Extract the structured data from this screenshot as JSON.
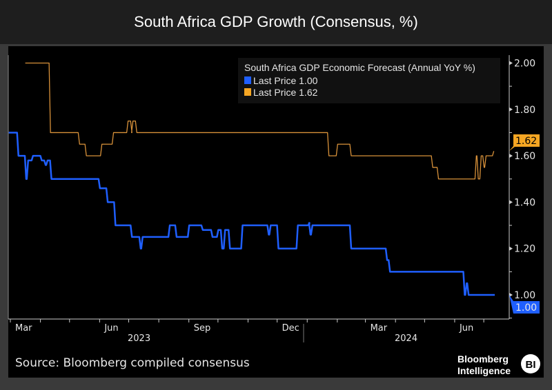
{
  "title": "South Africa GDP Growth (Consensus, %)",
  "source": "Source: Bloomberg compiled consensus",
  "brand": {
    "line1": "Bloomberg",
    "line2": "Intelligence",
    "badge": "BI"
  },
  "colors": {
    "blue": "#1f5fff",
    "orange": "#d9923a",
    "tag_orange": "#f5a623",
    "background": "#000000",
    "title_bg": "#1e1e1e"
  },
  "chart_data": {
    "type": "line",
    "title": "South Africa GDP Growth (Consensus, %)",
    "legend_title": "South Africa GDP Economic Forecast (Annual YoY %)",
    "legend_position": "top-right",
    "grid": false,
    "y_axis_side": "right",
    "ylim": [
      0.9,
      2.05
    ],
    "y_ticks": [
      "2.00",
      "1.80",
      "1.60",
      "1.40",
      "1.20",
      "1.00"
    ],
    "x_ticks": [
      "Mar",
      "Jun",
      "Sep",
      "Dec",
      "Mar",
      "Jun"
    ],
    "x_tick_dates": [
      "2023-03-01",
      "2023-06-01",
      "2023-09-01",
      "2023-12-01",
      "2024-03-01",
      "2024-06-01"
    ],
    "x_years": [
      "2023",
      "2024"
    ],
    "xlim": [
      "2023-02-27",
      "2024-07-24"
    ],
    "series": [
      {
        "name": "Last Price 1.00",
        "color": "#1f5fff",
        "last": "1.00",
        "step": true,
        "points": [
          [
            "2023-02-27",
            1.7
          ],
          [
            "2023-03-09",
            1.6
          ],
          [
            "2023-03-17",
            1.5
          ],
          [
            "2023-03-19",
            1.58
          ],
          [
            "2023-03-24",
            1.6
          ],
          [
            "2023-04-02",
            1.58
          ],
          [
            "2023-04-06",
            1.56
          ],
          [
            "2023-04-08",
            1.58
          ],
          [
            "2023-04-12",
            1.5
          ],
          [
            "2023-06-01",
            1.46
          ],
          [
            "2023-06-09",
            1.4
          ],
          [
            "2023-06-17",
            1.3
          ],
          [
            "2023-07-04",
            1.25
          ],
          [
            "2023-07-13",
            1.2
          ],
          [
            "2023-07-15",
            1.25
          ],
          [
            "2023-08-12",
            1.3
          ],
          [
            "2023-08-19",
            1.25
          ],
          [
            "2023-09-01",
            1.3
          ],
          [
            "2023-09-15",
            1.28
          ],
          [
            "2023-09-25",
            1.25
          ],
          [
            "2023-10-01",
            1.28
          ],
          [
            "2023-10-05",
            1.2
          ],
          [
            "2023-10-08",
            1.28
          ],
          [
            "2023-10-13",
            1.2
          ],
          [
            "2023-10-26",
            1.3
          ],
          [
            "2023-11-22",
            1.26
          ],
          [
            "2023-11-24",
            1.3
          ],
          [
            "2023-12-02",
            1.2
          ],
          [
            "2023-12-22",
            1.3
          ],
          [
            "2024-01-03",
            1.31
          ],
          [
            "2024-01-04",
            1.26
          ],
          [
            "2024-01-06",
            1.3
          ],
          [
            "2024-02-15",
            1.2
          ],
          [
            "2024-03-23",
            1.15
          ],
          [
            "2024-03-26",
            1.1
          ],
          [
            "2024-06-11",
            1.0
          ],
          [
            "2024-06-13",
            1.05
          ],
          [
            "2024-06-15",
            1.0
          ],
          [
            "2024-07-12",
            1.0
          ]
        ]
      },
      {
        "name": "Last Price 1.62",
        "color": "#d9923a",
        "last": "1.62",
        "step": true,
        "points": [
          [
            "2023-03-16",
            2.0
          ],
          [
            "2023-04-11",
            1.7
          ],
          [
            "2023-05-11",
            1.65
          ],
          [
            "2023-05-18",
            1.6
          ],
          [
            "2023-06-03",
            1.65
          ],
          [
            "2023-06-15",
            1.7
          ],
          [
            "2023-06-30",
            1.75
          ],
          [
            "2023-07-04",
            1.7
          ],
          [
            "2023-07-05",
            1.75
          ],
          [
            "2023-07-09",
            1.7
          ],
          [
            "2024-01-23",
            1.6
          ],
          [
            "2024-02-01",
            1.65
          ],
          [
            "2024-02-15",
            1.6
          ],
          [
            "2024-05-09",
            1.55
          ],
          [
            "2024-05-15",
            1.5
          ],
          [
            "2024-06-23",
            1.6
          ],
          [
            "2024-06-25",
            1.5
          ],
          [
            "2024-06-28",
            1.6
          ],
          [
            "2024-07-01",
            1.55
          ],
          [
            "2024-07-03",
            1.6
          ],
          [
            "2024-07-08",
            1.6
          ],
          [
            "2024-07-11",
            1.62
          ]
        ]
      }
    ]
  }
}
